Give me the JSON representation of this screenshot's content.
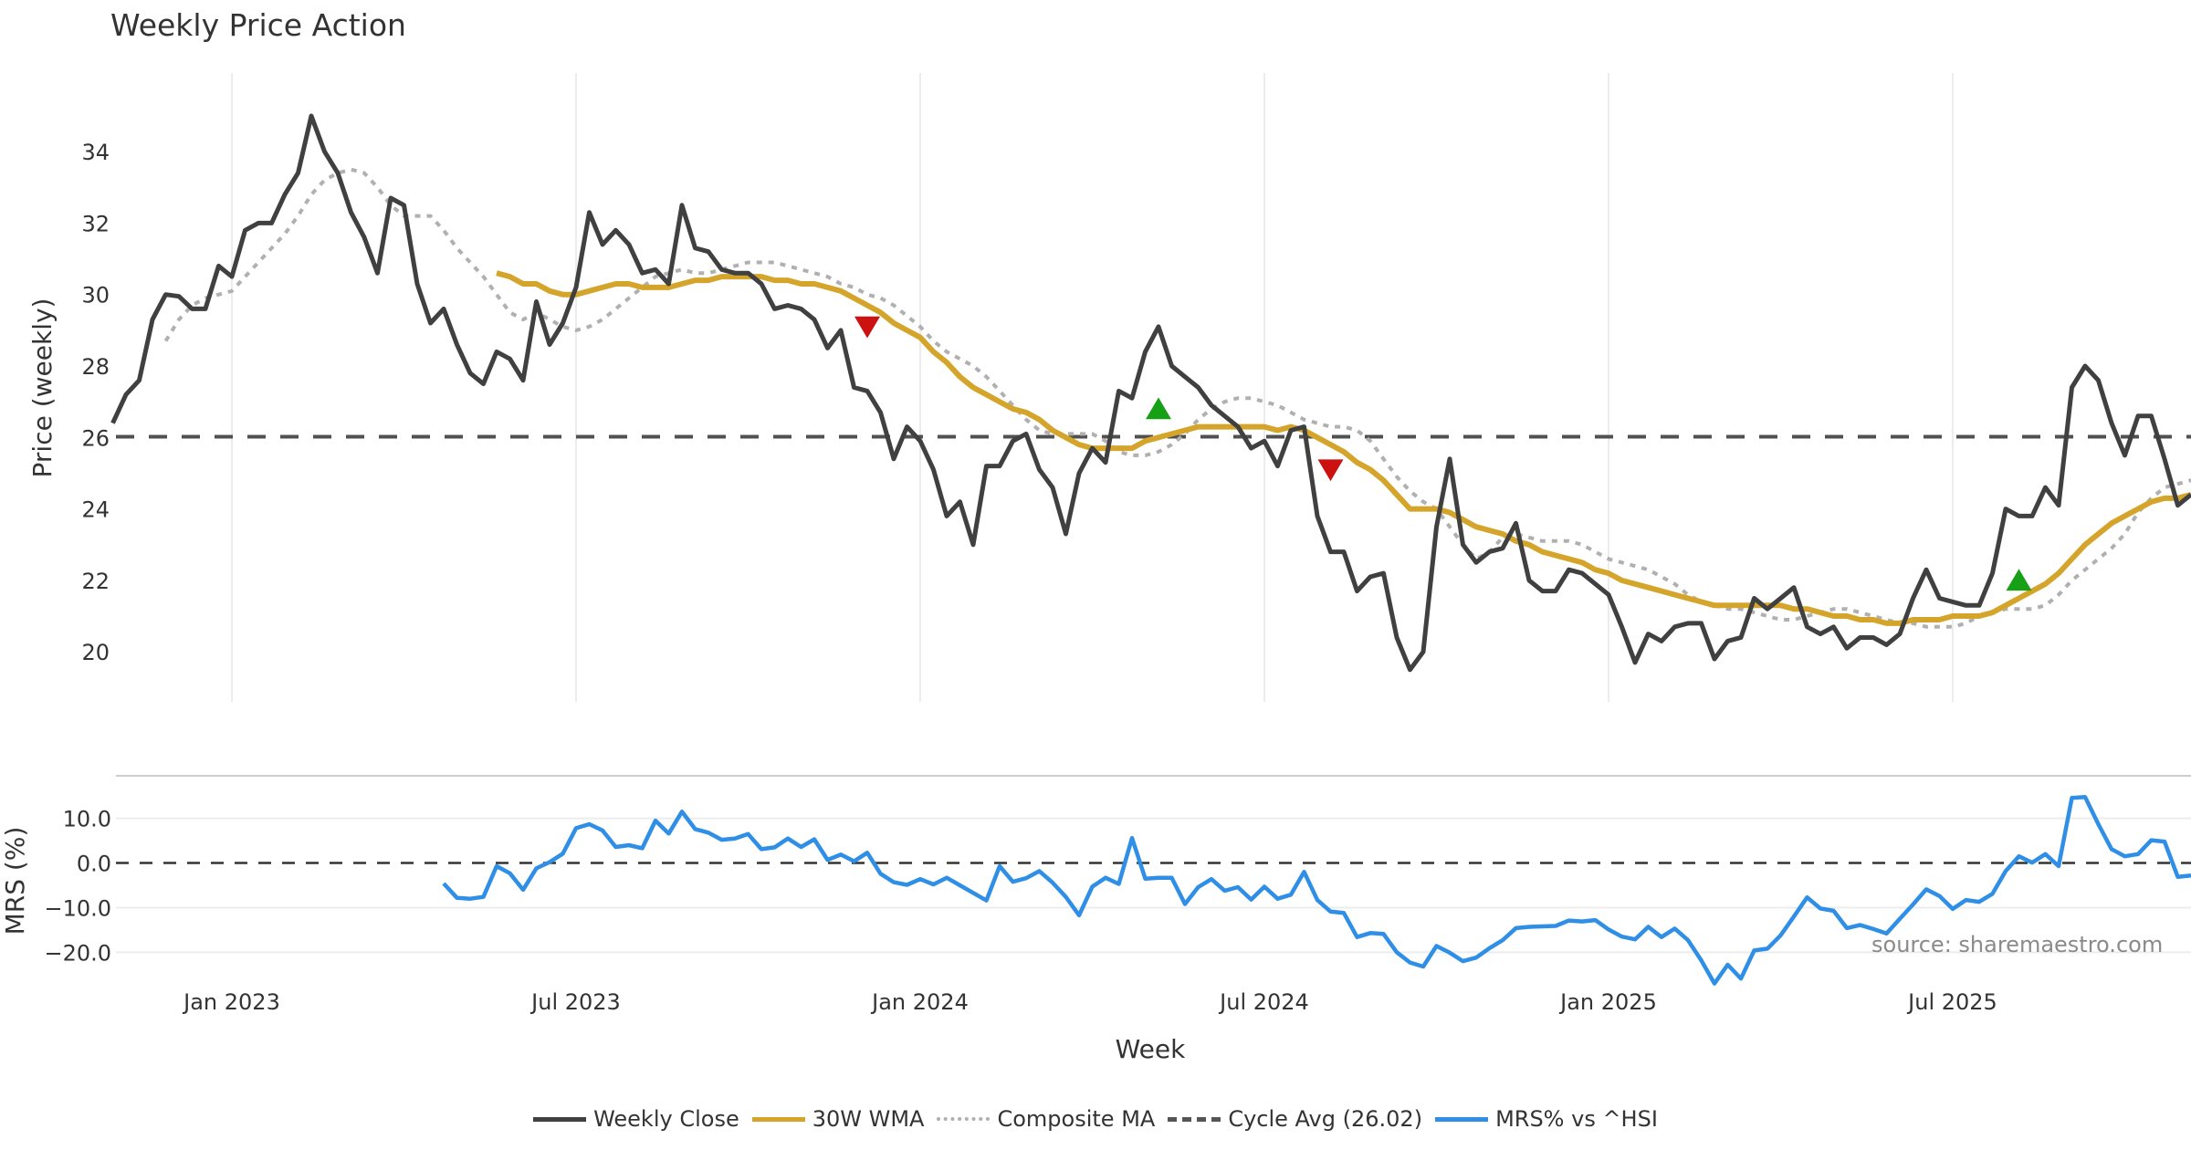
{
  "chart_data": {
    "type": "line",
    "title": "Weekly Price Action",
    "xlabel": "Week",
    "source_note": "source: sharemaestro.com",
    "x_ticks": [
      "Jan 2023",
      "Jul 2023",
      "Jan 2024",
      "Jul 2024",
      "Jan 2025",
      "Jul 2025"
    ],
    "x_tick_week_index": [
      9,
      35,
      61,
      87,
      113,
      139
    ],
    "x_range_weeks": [
      0,
      157
    ],
    "price_panel": {
      "ylabel": "Price (weekly)",
      "ylim": [
        18.6,
        36.2
      ],
      "yticks": [
        20,
        22,
        24,
        26,
        28,
        30,
        32,
        34
      ],
      "cycle_avg": 26.02,
      "series": [
        {
          "name": "Weekly Close",
          "color": "#404040",
          "start_index": 0,
          "values": [
            26.4,
            27.2,
            27.6,
            29.3,
            30.0,
            29.95,
            29.6,
            29.6,
            30.8,
            30.5,
            31.8,
            32.0,
            32.0,
            32.8,
            33.4,
            35.0,
            34.0,
            33.4,
            32.3,
            31.6,
            30.6,
            32.7,
            32.5,
            30.3,
            29.2,
            29.6,
            28.6,
            27.8,
            27.5,
            28.4,
            28.2,
            27.6,
            29.8,
            28.6,
            29.2,
            30.2,
            32.3,
            31.4,
            31.8,
            31.4,
            30.6,
            30.7,
            30.3,
            32.5,
            31.3,
            31.2,
            30.7,
            30.6,
            30.6,
            30.3,
            29.6,
            29.7,
            29.6,
            29.3,
            28.5,
            29.0,
            27.4,
            27.3,
            26.7,
            25.4,
            26.3,
            25.9,
            25.1,
            23.8,
            24.2,
            23.0,
            25.2,
            25.2,
            25.9,
            26.1,
            25.1,
            24.6,
            23.3,
            25.0,
            25.7,
            25.3,
            27.3,
            27.1,
            28.4,
            29.1,
            28.0,
            27.7,
            27.4,
            26.9,
            26.6,
            26.3,
            25.7,
            25.9,
            25.2,
            26.2,
            26.3,
            23.8,
            22.8,
            22.8,
            21.7,
            22.1,
            22.2,
            20.4,
            19.5,
            20.0,
            23.5,
            25.4,
            23.0,
            22.5,
            22.8,
            22.9,
            23.6,
            22.0,
            21.7,
            21.7,
            22.3,
            22.2,
            21.9,
            21.6,
            20.7,
            19.7,
            20.5,
            20.3,
            20.7,
            20.8,
            20.8,
            19.8,
            20.3,
            20.4,
            21.5,
            21.2,
            21.5,
            21.8,
            20.7,
            20.5,
            20.7,
            20.1,
            20.4,
            20.4,
            20.2,
            20.5,
            21.5,
            22.3,
            21.5,
            21.4,
            21.3,
            21.3,
            22.2,
            24.0,
            23.8,
            23.8,
            24.6,
            24.1,
            27.4,
            28.0,
            27.6,
            26.4,
            25.5,
            26.6,
            26.6,
            25.4,
            24.1,
            24.4
          ]
        },
        {
          "name": "30W WMA",
          "color": "#d4a52a",
          "start_index": 29,
          "values": [
            30.6,
            30.5,
            30.3,
            30.3,
            30.1,
            30.0,
            30.0,
            30.1,
            30.2,
            30.3,
            30.3,
            30.2,
            30.2,
            30.2,
            30.3,
            30.4,
            30.4,
            30.5,
            30.5,
            30.5,
            30.5,
            30.4,
            30.4,
            30.3,
            30.3,
            30.2,
            30.1,
            29.9,
            29.7,
            29.5,
            29.2,
            29.0,
            28.8,
            28.4,
            28.1,
            27.7,
            27.4,
            27.2,
            27.0,
            26.8,
            26.7,
            26.5,
            26.2,
            26.0,
            25.8,
            25.7,
            25.7,
            25.7,
            25.7,
            25.9,
            26.0,
            26.1,
            26.2,
            26.3,
            26.3,
            26.3,
            26.3,
            26.3,
            26.3,
            26.2,
            26.3,
            26.2,
            26.0,
            25.8,
            25.6,
            25.3,
            25.1,
            24.8,
            24.4,
            24.0,
            24.0,
            24.0,
            23.9,
            23.7,
            23.5,
            23.4,
            23.3,
            23.1,
            23.0,
            22.8,
            22.7,
            22.6,
            22.5,
            22.3,
            22.2,
            22.0,
            21.9,
            21.8,
            21.7,
            21.6,
            21.5,
            21.4,
            21.3,
            21.3,
            21.3,
            21.3,
            21.3,
            21.3,
            21.2,
            21.2,
            21.1,
            21.0,
            21.0,
            20.9,
            20.9,
            20.8,
            20.8,
            20.9,
            20.9,
            20.9,
            21.0,
            21.0,
            21.0,
            21.1,
            21.3,
            21.5,
            21.7,
            21.9,
            22.2,
            22.6,
            23.0,
            23.3,
            23.6,
            23.8,
            24.0,
            24.2,
            24.3,
            24.3,
            24.4
          ]
        },
        {
          "name": "Composite MA",
          "color": "#b0b0b0",
          "start_index": 4,
          "values": [
            28.7,
            29.3,
            29.7,
            29.9,
            30.0,
            30.1,
            30.5,
            30.9,
            31.3,
            31.7,
            32.2,
            32.8,
            33.2,
            33.4,
            33.5,
            33.4,
            33.0,
            32.5,
            32.2,
            32.2,
            32.2,
            31.8,
            31.3,
            30.9,
            30.5,
            30.0,
            29.5,
            29.3,
            29.5,
            29.3,
            29.1,
            29.0,
            29.1,
            29.3,
            29.6,
            29.9,
            30.2,
            30.5,
            30.6,
            30.7,
            30.6,
            30.6,
            30.7,
            30.8,
            30.9,
            30.9,
            30.9,
            30.8,
            30.7,
            30.6,
            30.5,
            30.3,
            30.2,
            30.0,
            29.9,
            29.7,
            29.4,
            29.1,
            28.7,
            28.4,
            28.2,
            28.0,
            27.7,
            27.3,
            26.9,
            26.5,
            26.2,
            26.1,
            26.1,
            26.1,
            26.1,
            25.9,
            25.6,
            25.5,
            25.5,
            25.6,
            25.8,
            26.1,
            26.5,
            26.8,
            27.0,
            27.1,
            27.1,
            27.0,
            26.9,
            26.7,
            26.5,
            26.4,
            26.3,
            26.3,
            26.2,
            25.9,
            25.4,
            24.9,
            24.5,
            24.2,
            24.0,
            23.5,
            23.0,
            22.6,
            22.8,
            23.2,
            23.3,
            23.2,
            23.1,
            23.1,
            23.1,
            23.0,
            22.8,
            22.6,
            22.5,
            22.4,
            22.3,
            22.1,
            21.9,
            21.6,
            21.4,
            21.3,
            21.2,
            21.2,
            21.1,
            21.0,
            20.9,
            20.9,
            21.0,
            21.1,
            21.2,
            21.2,
            21.1,
            21.0,
            20.9,
            20.8,
            20.8,
            20.7,
            20.7,
            20.7,
            20.8,
            21.0,
            21.1,
            21.2,
            21.2,
            21.2,
            21.3,
            21.6,
            22.0,
            22.3,
            22.6,
            22.9,
            23.3,
            23.9,
            24.3,
            24.6,
            24.7,
            24.8,
            24.9,
            25.0,
            25.0,
            24.8
          ]
        }
      ],
      "signals": [
        {
          "type": "sell",
          "marker": "down-triangle",
          "color": "#cc1111",
          "week_index": 57,
          "value": 29.1
        },
        {
          "type": "buy",
          "marker": "up-triangle",
          "color": "#15a015",
          "week_index": 79,
          "value": 26.8
        },
        {
          "type": "sell",
          "marker": "down-triangle",
          "color": "#cc1111",
          "week_index": 92,
          "value": 25.1
        },
        {
          "type": "buy",
          "marker": "up-triangle",
          "color": "#15a015",
          "week_index": 144,
          "value": 22.0
        }
      ]
    },
    "mrs_panel": {
      "ylabel": "MRS (%)",
      "ylim": [
        -27.5,
        17.5
      ],
      "yticks": [
        "10.0",
        "0.0",
        "−10.0",
        "−20.0"
      ],
      "ytick_values": [
        10,
        0,
        -10,
        -20
      ],
      "zero_line": 0,
      "series": [
        {
          "name": "MRS% vs ^HSI",
          "color": "#2f8fe6",
          "start_index": 25,
          "values": [
            -4.6,
            -7.8,
            -8.0,
            -7.6,
            -0.7,
            -2.3,
            -6.0,
            -1.2,
            0.2,
            2.1,
            7.8,
            8.7,
            7.3,
            3.6,
            4.0,
            3.3,
            9.5,
            6.6,
            11.5,
            7.6,
            6.8,
            5.2,
            5.5,
            6.5,
            3.1,
            3.5,
            5.5,
            3.6,
            5.3,
            0.7,
            1.9,
            0.4,
            2.3,
            -2.4,
            -4.3,
            -4.9,
            -3.6,
            -4.8,
            -3.3,
            -5.0,
            -6.7,
            -8.4,
            -0.7,
            -4.2,
            -3.4,
            -1.8,
            -4.4,
            -7.6,
            -11.7,
            -5.3,
            -3.3,
            -4.7,
            5.6,
            -3.5,
            -3.3,
            -3.3,
            -9.2,
            -5.4,
            -3.6,
            -6.2,
            -5.4,
            -8.2,
            -5.3,
            -8.0,
            -7.1,
            -2.0,
            -8.3,
            -10.9,
            -11.2,
            -16.6,
            -15.7,
            -15.9,
            -20.0,
            -22.3,
            -23.2,
            -18.6,
            -20.1,
            -22.0,
            -21.2,
            -19.1,
            -17.3,
            -14.6,
            -14.3,
            -14.2,
            -14.1,
            -12.9,
            -13.1,
            -12.8,
            -14.9,
            -16.5,
            -17.1,
            -14.3,
            -16.6,
            -14.7,
            -17.3,
            -21.8,
            -27.0,
            -22.8,
            -25.9,
            -19.6,
            -19.2,
            -16.2,
            -12.0,
            -7.7,
            -10.2,
            -10.7,
            -14.6,
            -13.9,
            -14.8,
            -15.8,
            -12.5,
            -9.3,
            -5.9,
            -7.4,
            -10.3,
            -8.3,
            -8.7,
            -6.9,
            -1.8,
            1.5,
            0.1,
            2.0,
            -0.7,
            14.6,
            14.8,
            8.7,
            3.1,
            1.5,
            2.0,
            5.1,
            4.8,
            -3.1,
            -2.8
          ]
        }
      ]
    },
    "legend": {
      "placement": "bottom-center",
      "entries": [
        {
          "label": "Weekly Close",
          "style": "solid",
          "color": "#404040"
        },
        {
          "label": "30W WMA",
          "style": "solid",
          "color": "#d4a52a"
        },
        {
          "label": "Composite MA",
          "style": "dotted",
          "color": "#b0b0b0"
        },
        {
          "label": "Cycle Avg (26.02)",
          "style": "dashed",
          "color": "#555555"
        },
        {
          "label": "MRS% vs ^HSI",
          "style": "solid",
          "color": "#2f8fe6"
        }
      ]
    },
    "grid": true
  }
}
